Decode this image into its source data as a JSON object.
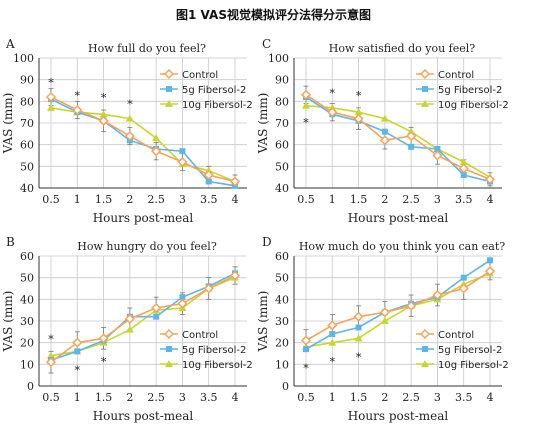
{
  "figure": {
    "title": "图1 VAS视觉模拟评分法得分示意图"
  },
  "colors": {
    "control": "#f5a35c",
    "fiber5": "#5fb6e6",
    "fiber10": "#c8d633",
    "grid": "#c8c8c8",
    "axis": "#333333"
  },
  "chart_data": [
    {
      "panel": "A",
      "type": "line",
      "title": "How full do you feel?",
      "xlabel": "Hours post-meal",
      "ylabel": "VAS (mm)",
      "x": [
        0.5,
        1,
        1.5,
        2,
        2.5,
        3,
        3.5,
        4
      ],
      "ylim": [
        40,
        100
      ],
      "yticks": [
        40,
        50,
        60,
        70,
        80,
        90,
        100
      ],
      "grid": true,
      "legend": "top-right",
      "series": [
        {
          "name": "Control",
          "values": [
            82,
            76,
            71,
            64,
            57,
            52,
            46,
            43
          ]
        },
        {
          "name": "5g Fibersol-2",
          "values": [
            81,
            75,
            71,
            62,
            58,
            57,
            43,
            41
          ]
        },
        {
          "name": "10g Fibersol-2",
          "values": [
            77,
            75,
            74,
            72,
            63,
            51,
            48,
            43
          ]
        }
      ],
      "error_bars": [
        4,
        4,
        5,
        4,
        4,
        4,
        4,
        3
      ],
      "significance_markers": [
        "*",
        "*",
        "*",
        "*"
      ],
      "significance_at": [
        0.5,
        1,
        1.5,
        2
      ]
    },
    {
      "panel": "C",
      "type": "line",
      "title": "How satisfied do you feel?",
      "xlabel": "Hours post-meal",
      "ylabel": "VAS (mm)",
      "x": [
        0.5,
        1,
        1.5,
        2,
        2.5,
        3,
        3.5,
        4
      ],
      "ylim": [
        40,
        100
      ],
      "yticks": [
        40,
        50,
        60,
        70,
        80,
        90,
        100
      ],
      "grid": true,
      "legend": "top-right",
      "series": [
        {
          "name": "Control",
          "values": [
            83,
            75,
            72,
            62,
            64,
            55,
            49,
            44
          ]
        },
        {
          "name": "5g Fibersol-2",
          "values": [
            82,
            74,
            71,
            66,
            59,
            58,
            46,
            43
          ]
        },
        {
          "name": "10g Fibersol-2",
          "values": [
            78,
            77,
            75,
            72,
            66,
            58,
            52,
            45
          ]
        }
      ],
      "error_bars": [
        4,
        4,
        5,
        4,
        4,
        4,
        4,
        3
      ],
      "significance_markers": [
        "*",
        "*",
        "*"
      ],
      "significance_at": [
        0.5,
        1,
        1.5
      ],
      "significance_positions": [
        "below",
        "above",
        "above"
      ]
    },
    {
      "panel": "B",
      "type": "line",
      "title": "How hungry do you feel?",
      "xlabel": "Hours post-meal",
      "ylabel": "VAS (mm)",
      "x": [
        0.5,
        1,
        1.5,
        2,
        2.5,
        3,
        3.5,
        4
      ],
      "ylim": [
        0,
        60
      ],
      "yticks": [
        0,
        10,
        20,
        30,
        40,
        50,
        60
      ],
      "grid": true,
      "legend": "bottom-right",
      "series": [
        {
          "name": "Control",
          "values": [
            11,
            20,
            22,
            31,
            36,
            38,
            45,
            51
          ]
        },
        {
          "name": "5g Fibersol-2",
          "values": [
            12,
            16,
            21,
            32,
            32,
            41,
            46,
            52
          ]
        },
        {
          "name": "10g Fibersol-2",
          "values": [
            14,
            16,
            20,
            26,
            35,
            36,
            45,
            50
          ]
        }
      ],
      "error_bars": [
        5,
        5,
        5,
        5,
        5,
        5,
        5,
        4
      ],
      "significance_markers": [
        "*",
        "*",
        "*"
      ],
      "significance_at": [
        0.5,
        1,
        1.5
      ],
      "significance_positions": [
        "above",
        "below",
        "below"
      ]
    },
    {
      "panel": "D",
      "type": "line",
      "title": "How much  do you think you can eat?",
      "xlabel": "Hours post-meal",
      "ylabel": "VAS (mm)",
      "x": [
        0.5,
        1,
        1.5,
        2,
        2.5,
        3,
        3.5,
        4
      ],
      "ylim": [
        0,
        60
      ],
      "yticks": [
        0,
        10,
        20,
        30,
        40,
        50,
        60
      ],
      "grid": true,
      "legend": "bottom-right",
      "series": [
        {
          "name": "Control",
          "values": [
            21,
            28,
            32,
            34,
            37,
            42,
            45,
            53
          ]
        },
        {
          "name": "5g Fibersol-2",
          "values": [
            17,
            24,
            27,
            34,
            38,
            41,
            50,
            58
          ]
        },
        {
          "name": "10g Fibersol-2",
          "values": [
            18,
            20,
            22,
            30,
            37,
            40,
            47,
            52
          ]
        }
      ],
      "error_bars": [
        5,
        5,
        5,
        5,
        5,
        5,
        5,
        4
      ],
      "significance_markers": [
        "*",
        "*",
        "*"
      ],
      "significance_at": [
        0.5,
        1,
        1.5
      ],
      "significance_positions": [
        "below",
        "below",
        "below"
      ]
    }
  ]
}
